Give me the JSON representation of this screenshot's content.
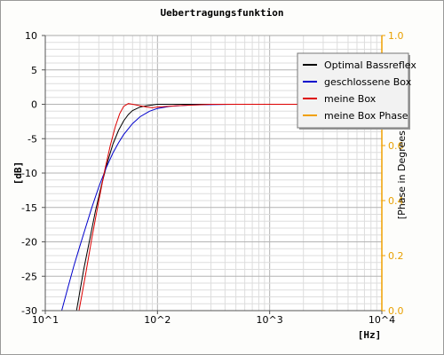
{
  "chart_data": {
    "type": "line",
    "title": "Uebertragungsfunktion",
    "xlabel": "[Hz]",
    "ylabel": "[dB]",
    "y2label": "[Phase in Degrees]",
    "xscale": "log",
    "xlim": [
      10,
      10000
    ],
    "ylim": [
      -30,
      10
    ],
    "y2lim": [
      0,
      1
    ],
    "grid": true,
    "legend_position": "top-right",
    "x_ticks": [
      {
        "base": "10",
        "exp": "1"
      },
      {
        "base": "10",
        "exp": "2"
      },
      {
        "base": "10",
        "exp": "3"
      },
      {
        "base": "10",
        "exp": "4"
      }
    ],
    "y_ticks": [
      "10",
      "5",
      "0",
      "-5",
      "-10",
      "-15",
      "-20",
      "-25",
      "-30"
    ],
    "y2_ticks": [
      "1.0",
      "0.8",
      "0.6",
      "0.4",
      "0.2",
      "0.0"
    ],
    "series": [
      {
        "name": "Optimal Bassreflex",
        "color": "#000000",
        "x": [
          19,
          22,
          25,
          28,
          32,
          36,
          40,
          45,
          50,
          55,
          60,
          70,
          80,
          100,
          150,
          250,
          500,
          1000,
          3000,
          10000
        ],
        "y": [
          -30,
          -24,
          -19.5,
          -15.5,
          -11.5,
          -8.3,
          -5.8,
          -3.8,
          -2.4,
          -1.5,
          -0.9,
          -0.4,
          -0.2,
          0,
          0,
          0,
          0,
          0,
          0,
          0
        ]
      },
      {
        "name": "geschlossene Box",
        "color": "#0000cc",
        "x": [
          14,
          16,
          18,
          20,
          23,
          26,
          30,
          35,
          40,
          45,
          50,
          60,
          70,
          85,
          100,
          130,
          200,
          300,
          500,
          1000,
          3000,
          10000
        ],
        "y": [
          -30,
          -26.5,
          -23.5,
          -21,
          -17.8,
          -15,
          -12,
          -9.2,
          -7.1,
          -5.6,
          -4.4,
          -2.8,
          -1.8,
          -1.0,
          -0.6,
          -0.3,
          -0.1,
          -0.05,
          0,
          0,
          0,
          0
        ]
      },
      {
        "name": "meine Box",
        "color": "#dd0000",
        "x": [
          20,
          23,
          26,
          30,
          34,
          38,
          42,
          46,
          50,
          55,
          60,
          70,
          80,
          90,
          100,
          150,
          300,
          1000,
          10000
        ],
        "y": [
          -30,
          -24.5,
          -19.5,
          -14,
          -9.5,
          -6,
          -3.3,
          -1.4,
          -0.3,
          0.1,
          0,
          -0.2,
          -0.4,
          -0.5,
          -0.4,
          -0.2,
          0,
          0,
          0
        ]
      },
      {
        "name": "meine Box Phase",
        "color": "#f0a000",
        "x": [],
        "y": []
      }
    ]
  }
}
